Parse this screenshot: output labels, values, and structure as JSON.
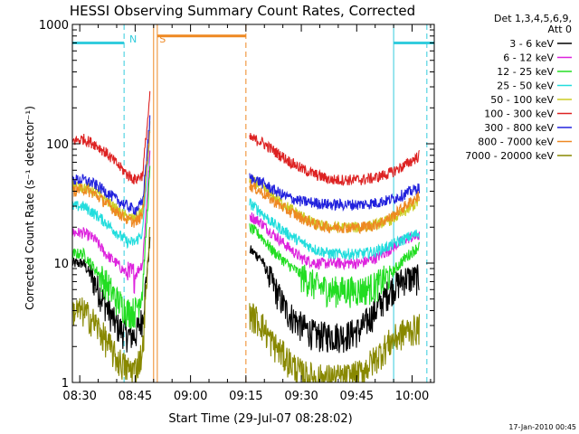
{
  "chart_data": {
    "type": "line",
    "title": "HESSI Observing Summary Count Rates, Corrected",
    "xlabel": "Start Time (29-Jul-07 08:28:02)",
    "ylabel": "Corrected Count Rate (s⁻¹ detector⁻¹)",
    "footer": "17-Jan-2010 00:45",
    "y_scale": "log",
    "ylim": [
      1,
      1000
    ],
    "xlim": [
      "08:28",
      "10:06"
    ],
    "x_ticks": [
      "08:30",
      "08:45",
      "09:00",
      "09:15",
      "09:30",
      "09:45",
      "10:00"
    ],
    "y_ticks": [
      "1",
      "10",
      "100",
      "1000"
    ],
    "legend_header": [
      "Det 1,3,4,5,6,9,",
      "Att 0"
    ],
    "legend_position": "right",
    "markers": [
      {
        "label": "N",
        "time": "08:42",
        "color": "#33ccdd",
        "style": "dashed"
      },
      {
        "label": "S",
        "time": "08:50",
        "color": "#ee8822",
        "style": "dashed"
      }
    ],
    "flag_segments": [
      {
        "name": "night",
        "color": "#33ccdd",
        "from": "08:28",
        "to": "08:42",
        "level": 700
      },
      {
        "name": "saa",
        "color": "#ee8822",
        "from": "08:51",
        "to": "09:15",
        "level": 800
      },
      {
        "name": "night",
        "color": "#33ccdd",
        "from": "09:55",
        "to": "10:06",
        "level": 700
      }
    ],
    "vertical_lines": [
      {
        "time": "08:28",
        "color": "#33ccdd",
        "style": "solid"
      },
      {
        "time": "08:42",
        "color": "#33ccdd",
        "style": "dashed"
      },
      {
        "time": "08:50",
        "color": "#ee8822",
        "style": "solid"
      },
      {
        "time": "08:51",
        "color": "#ee8822",
        "style": "solid"
      },
      {
        "time": "09:15",
        "color": "#ee8822",
        "style": "dashed"
      },
      {
        "time": "09:55",
        "color": "#33ccdd",
        "style": "solid"
      },
      {
        "time": "10:04",
        "color": "#33ccdd",
        "style": "dashed"
      }
    ],
    "segments": [
      {
        "from": "08:28",
        "to": "08:50"
      },
      {
        "from": "09:16",
        "to": "10:04"
      }
    ],
    "series": [
      {
        "name": "3 - 6 keV",
        "color": "#000000",
        "seg1": [
          [
            0,
            10
          ],
          [
            3,
            10
          ],
          [
            6,
            7
          ],
          [
            9,
            4.5
          ],
          [
            12,
            3
          ],
          [
            15,
            2.5
          ],
          [
            17,
            2.5
          ],
          [
            19,
            3.5
          ],
          [
            21,
            15
          ]
        ],
        "seg2": [
          [
            0,
            13
          ],
          [
            3,
            11
          ],
          [
            6,
            7
          ],
          [
            10,
            4
          ],
          [
            14,
            3
          ],
          [
            18,
            2.5
          ],
          [
            22,
            2.5
          ],
          [
            26,
            2.5
          ],
          [
            30,
            2.8
          ],
          [
            34,
            4
          ],
          [
            38,
            6
          ],
          [
            42,
            7.5
          ],
          [
            46,
            7.5
          ]
        ]
      },
      {
        "name": "6 - 12 keV",
        "color": "#dd22dd",
        "seg1": [
          [
            0,
            18
          ],
          [
            3,
            18
          ],
          [
            6,
            16
          ],
          [
            9,
            12
          ],
          [
            12,
            10
          ],
          [
            15,
            8
          ],
          [
            17,
            8
          ],
          [
            19,
            10
          ],
          [
            21,
            80
          ]
        ],
        "seg2": [
          [
            0,
            25
          ],
          [
            3,
            22
          ],
          [
            6,
            18
          ],
          [
            10,
            14
          ],
          [
            14,
            11
          ],
          [
            18,
            10
          ],
          [
            22,
            10
          ],
          [
            26,
            10
          ],
          [
            30,
            10
          ],
          [
            34,
            11
          ],
          [
            38,
            13
          ],
          [
            42,
            16
          ],
          [
            46,
            17
          ]
        ]
      },
      {
        "name": "12 - 25 keV",
        "color": "#22dd22",
        "seg1": [
          [
            0,
            12
          ],
          [
            3,
            12
          ],
          [
            6,
            9
          ],
          [
            9,
            7
          ],
          [
            12,
            5
          ],
          [
            15,
            4
          ],
          [
            17,
            4
          ],
          [
            19,
            6
          ],
          [
            21,
            60
          ]
        ],
        "seg2": [
          [
            0,
            20
          ],
          [
            3,
            17
          ],
          [
            6,
            13
          ],
          [
            10,
            10
          ],
          [
            14,
            8
          ],
          [
            18,
            6.5
          ],
          [
            22,
            6
          ],
          [
            26,
            6
          ],
          [
            30,
            6
          ],
          [
            34,
            6.5
          ],
          [
            38,
            8
          ],
          [
            42,
            11
          ],
          [
            46,
            14
          ]
        ]
      },
      {
        "name": "25 - 50 keV",
        "color": "#22dddd",
        "seg1": [
          [
            0,
            30
          ],
          [
            3,
            30
          ],
          [
            6,
            26
          ],
          [
            9,
            22
          ],
          [
            12,
            18
          ],
          [
            15,
            15
          ],
          [
            17,
            15
          ],
          [
            19,
            18
          ],
          [
            21,
            120
          ]
        ],
        "seg2": [
          [
            0,
            32
          ],
          [
            3,
            27
          ],
          [
            6,
            22
          ],
          [
            10,
            18
          ],
          [
            14,
            15
          ],
          [
            18,
            13
          ],
          [
            22,
            12
          ],
          [
            26,
            12
          ],
          [
            30,
            12
          ],
          [
            34,
            12.5
          ],
          [
            38,
            14
          ],
          [
            42,
            16
          ],
          [
            46,
            18
          ]
        ]
      },
      {
        "name": "50 - 100 keV",
        "color": "#cccc22",
        "seg1": [
          [
            0,
            45
          ],
          [
            3,
            44
          ],
          [
            6,
            40
          ],
          [
            9,
            34
          ],
          [
            12,
            28
          ],
          [
            15,
            24
          ],
          [
            17,
            24
          ],
          [
            19,
            28
          ],
          [
            21,
            140
          ]
        ],
        "seg2": [
          [
            0,
            50
          ],
          [
            3,
            45
          ],
          [
            6,
            37
          ],
          [
            10,
            30
          ],
          [
            14,
            25
          ],
          [
            18,
            21
          ],
          [
            22,
            20
          ],
          [
            26,
            20
          ],
          [
            30,
            20
          ],
          [
            34,
            21
          ],
          [
            38,
            23
          ],
          [
            42,
            27
          ],
          [
            46,
            33
          ]
        ]
      },
      {
        "name": "100 - 300 keV",
        "color": "#dd2222",
        "seg1": [
          [
            0,
            105
          ],
          [
            3,
            110
          ],
          [
            6,
            100
          ],
          [
            9,
            85
          ],
          [
            12,
            68
          ],
          [
            15,
            55
          ],
          [
            17,
            50
          ],
          [
            19,
            55
          ],
          [
            21,
            250
          ]
        ],
        "seg2": [
          [
            0,
            112
          ],
          [
            3,
            105
          ],
          [
            6,
            90
          ],
          [
            10,
            74
          ],
          [
            14,
            62
          ],
          [
            18,
            55
          ],
          [
            22,
            50
          ],
          [
            26,
            50
          ],
          [
            30,
            50
          ],
          [
            34,
            52
          ],
          [
            38,
            57
          ],
          [
            42,
            66
          ],
          [
            46,
            80
          ]
        ]
      },
      {
        "name": "300 - 800 keV",
        "color": "#2222dd",
        "seg1": [
          [
            0,
            50
          ],
          [
            3,
            50
          ],
          [
            6,
            46
          ],
          [
            9,
            40
          ],
          [
            12,
            34
          ],
          [
            15,
            30
          ],
          [
            17,
            28
          ],
          [
            19,
            32
          ],
          [
            21,
            160
          ]
        ],
        "seg2": [
          [
            0,
            52
          ],
          [
            3,
            48
          ],
          [
            6,
            42
          ],
          [
            10,
            36
          ],
          [
            14,
            33
          ],
          [
            18,
            32
          ],
          [
            22,
            31
          ],
          [
            26,
            31
          ],
          [
            30,
            31
          ],
          [
            34,
            32
          ],
          [
            38,
            34
          ],
          [
            42,
            38
          ],
          [
            46,
            43
          ]
        ]
      },
      {
        "name": "800 - 7000 keV",
        "color": "#ee8822",
        "seg1": [
          [
            0,
            40
          ],
          [
            3,
            42
          ],
          [
            6,
            38
          ],
          [
            9,
            32
          ],
          [
            12,
            27
          ],
          [
            15,
            23
          ],
          [
            17,
            22
          ],
          [
            19,
            25
          ],
          [
            21,
            130
          ]
        ],
        "seg2": [
          [
            0,
            45
          ],
          [
            3,
            40
          ],
          [
            6,
            34
          ],
          [
            10,
            28
          ],
          [
            14,
            24
          ],
          [
            18,
            21
          ],
          [
            22,
            20
          ],
          [
            26,
            20
          ],
          [
            30,
            20
          ],
          [
            34,
            21
          ],
          [
            38,
            24
          ],
          [
            42,
            30
          ],
          [
            46,
            37
          ]
        ]
      },
      {
        "name": "7000 - 20000 keV",
        "color": "#888800",
        "seg1": [
          [
            0,
            4
          ],
          [
            3,
            4
          ],
          [
            6,
            3.2
          ],
          [
            9,
            2.3
          ],
          [
            12,
            1.6
          ],
          [
            15,
            1.3
          ],
          [
            17,
            1.3
          ],
          [
            19,
            1.8
          ],
          [
            21,
            20
          ]
        ],
        "seg2": [
          [
            0,
            3.8
          ],
          [
            3,
            3.2
          ],
          [
            6,
            2.2
          ],
          [
            10,
            1.6
          ],
          [
            14,
            1.2
          ],
          [
            18,
            1.1
          ],
          [
            22,
            1.1
          ],
          [
            26,
            1.1
          ],
          [
            30,
            1.2
          ],
          [
            34,
            1.6
          ],
          [
            38,
            2.2
          ],
          [
            42,
            2.7
          ],
          [
            46,
            2.9
          ]
        ]
      }
    ]
  }
}
